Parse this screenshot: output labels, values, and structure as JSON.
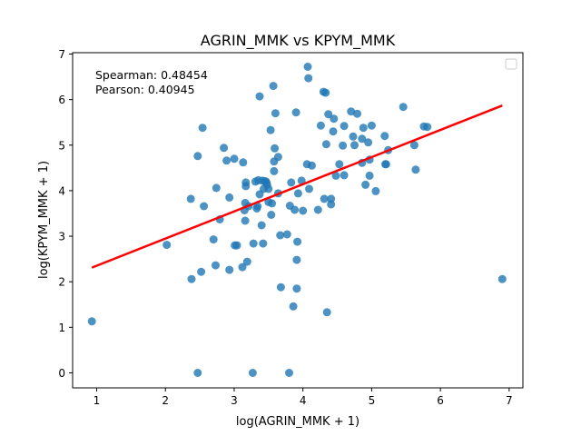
{
  "chart_data": {
    "type": "scatter",
    "title": "AGRIN_MMK vs KPYM_MMK",
    "xlabel": "log(AGRIN_MMK + 1)",
    "ylabel": "log(KPYM_MMK + 1)",
    "xlim": [
      0.65,
      7.2
    ],
    "ylim": [
      -0.33,
      7.03
    ],
    "xticks": [
      1,
      2,
      3,
      4,
      5,
      6,
      7
    ],
    "yticks": [
      0,
      1,
      2,
      3,
      4,
      5,
      6,
      7
    ],
    "grid": false,
    "legend": {
      "placement": "upper right",
      "entries": []
    },
    "annotations": [
      "Spearman: 0.48454",
      "Pearson: 0.40945"
    ],
    "colors": {
      "points": "#1f77b4",
      "fit_line": "#ff0000"
    },
    "fit_line": {
      "x": [
        0.93,
        6.9
      ],
      "y": [
        2.31,
        5.87
      ]
    },
    "points": [
      [
        0.93,
        1.13
      ],
      [
        2.02,
        2.81
      ],
      [
        2.37,
        3.82
      ],
      [
        2.38,
        2.06
      ],
      [
        2.47,
        0.0
      ],
      [
        2.47,
        4.76
      ],
      [
        2.52,
        2.22
      ],
      [
        2.54,
        5.38
      ],
      [
        2.56,
        3.66
      ],
      [
        2.7,
        2.93
      ],
      [
        2.73,
        2.36
      ],
      [
        2.74,
        4.06
      ],
      [
        2.79,
        3.37
      ],
      [
        2.85,
        4.94
      ],
      [
        2.89,
        4.66
      ],
      [
        2.93,
        2.26
      ],
      [
        2.93,
        3.85
      ],
      [
        3.0,
        4.7
      ],
      [
        3.01,
        2.8
      ],
      [
        3.04,
        2.8
      ],
      [
        3.12,
        2.32
      ],
      [
        3.13,
        4.62
      ],
      [
        3.15,
        3.57
      ],
      [
        3.16,
        3.73
      ],
      [
        3.16,
        3.34
      ],
      [
        3.17,
        4.18
      ],
      [
        3.17,
        4.1
      ],
      [
        3.19,
        2.44
      ],
      [
        3.21,
        3.66
      ],
      [
        3.27,
        0.0
      ],
      [
        3.28,
        2.84
      ],
      [
        3.31,
        4.2
      ],
      [
        3.33,
        3.61
      ],
      [
        3.34,
        3.66
      ],
      [
        3.35,
        4.23
      ],
      [
        3.37,
        6.07
      ],
      [
        3.37,
        3.92
      ],
      [
        3.4,
        3.24
      ],
      [
        3.41,
        4.22
      ],
      [
        3.42,
        2.84
      ],
      [
        3.43,
        4.04
      ],
      [
        3.45,
        4.21
      ],
      [
        3.47,
        4.19
      ],
      [
        3.48,
        4.13
      ],
      [
        3.5,
        3.75
      ],
      [
        3.5,
        4.04
      ],
      [
        3.53,
        5.33
      ],
      [
        3.54,
        3.47
      ],
      [
        3.55,
        3.72
      ],
      [
        3.57,
        6.3
      ],
      [
        3.58,
        4.43
      ],
      [
        3.58,
        4.64
      ],
      [
        3.59,
        4.93
      ],
      [
        3.6,
        5.7
      ],
      [
        3.64,
        4.74
      ],
      [
        3.64,
        3.94
      ],
      [
        3.67,
        3.02
      ],
      [
        3.68,
        1.88
      ],
      [
        3.77,
        3.04
      ],
      [
        3.8,
        0.0
      ],
      [
        3.81,
        3.67
      ],
      [
        3.83,
        4.18
      ],
      [
        3.86,
        1.46
      ],
      [
        3.88,
        3.58
      ],
      [
        3.9,
        5.72
      ],
      [
        3.91,
        1.85
      ],
      [
        3.91,
        2.48
      ],
      [
        3.92,
        2.88
      ],
      [
        3.93,
        3.94
      ],
      [
        3.98,
        4.22
      ],
      [
        4.0,
        3.56
      ],
      [
        4.06,
        4.58
      ],
      [
        4.07,
        6.72
      ],
      [
        4.08,
        6.47
      ],
      [
        4.09,
        4.04
      ],
      [
        4.13,
        4.55
      ],
      [
        4.22,
        3.58
      ],
      [
        4.26,
        5.43
      ],
      [
        4.3,
        6.17
      ],
      [
        4.31,
        3.82
      ],
      [
        4.33,
        6.15
      ],
      [
        4.34,
        5.02
      ],
      [
        4.35,
        1.33
      ],
      [
        4.37,
        5.68
      ],
      [
        4.41,
        3.82
      ],
      [
        4.41,
        3.7
      ],
      [
        4.44,
        5.3
      ],
      [
        4.45,
        5.58
      ],
      [
        4.48,
        4.33
      ],
      [
        4.53,
        4.58
      ],
      [
        4.58,
        4.99
      ],
      [
        4.6,
        5.42
      ],
      [
        4.6,
        4.34
      ],
      [
        4.7,
        5.74
      ],
      [
        4.73,
        5.19
      ],
      [
        4.75,
        5.0
      ],
      [
        4.79,
        5.69
      ],
      [
        4.86,
        4.61
      ],
      [
        4.86,
        5.14
      ],
      [
        4.88,
        5.38
      ],
      [
        4.91,
        4.13
      ],
      [
        4.95,
        5.06
      ],
      [
        4.97,
        4.68
      ],
      [
        4.97,
        4.33
      ],
      [
        5.0,
        5.43
      ],
      [
        5.06,
        3.99
      ],
      [
        5.19,
        5.2
      ],
      [
        5.2,
        4.58
      ],
      [
        5.21,
        4.58
      ],
      [
        5.24,
        4.89
      ],
      [
        5.46,
        5.84
      ],
      [
        5.62,
        5.0
      ],
      [
        5.64,
        4.46
      ],
      [
        5.76,
        5.41
      ],
      [
        5.81,
        5.4
      ],
      [
        6.9,
        2.06
      ]
    ]
  }
}
